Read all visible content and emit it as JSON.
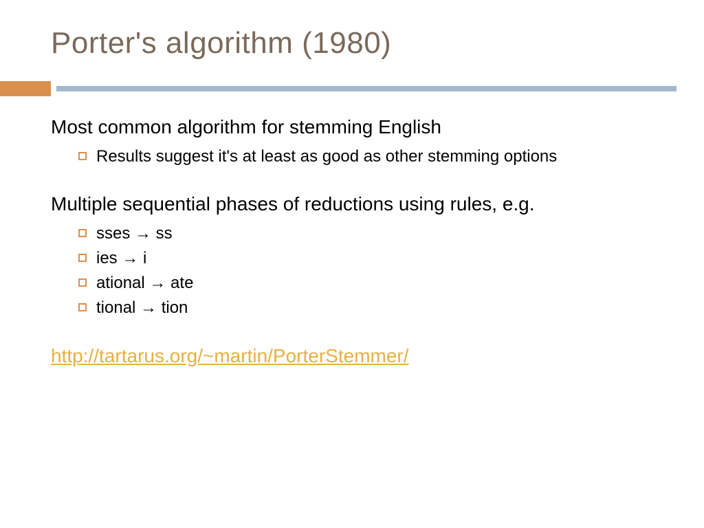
{
  "title": "Porter's algorithm (1980)",
  "colors": {
    "title_color": "#7a6a5a",
    "orange_block": "#d98f4e",
    "blue_line": "#a3b8cc",
    "bullet_border": "#d98f4e",
    "link_color": "#e8b040",
    "text_color": "#000000",
    "background": "#ffffff"
  },
  "typography": {
    "title_fontsize": 44,
    "main_fontsize": 28,
    "sub_fontsize": 24
  },
  "sections": [
    {
      "main": "Most common algorithm for stemming English",
      "subs": [
        "Results suggest it's at least as good as other stemming options"
      ]
    },
    {
      "main": "Multiple sequential phases of reductions using rules, e.g.",
      "subs": [
        "sses → ss",
        "ies → i",
        "ational → ate",
        "tional → tion"
      ]
    }
  ],
  "link_text": "http://tartarus.org/~martin/PorterStemmer/"
}
